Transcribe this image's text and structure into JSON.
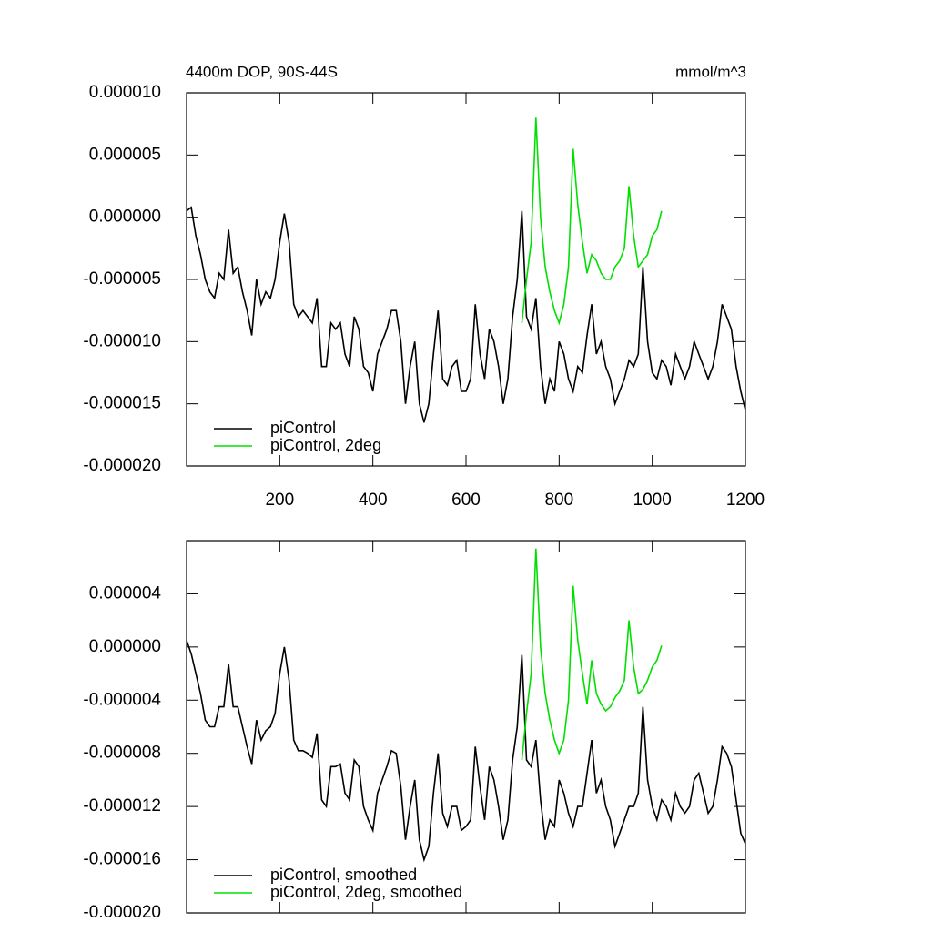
{
  "chart_data": [
    {
      "type": "line",
      "title": "4400m DOP, 90S-44S",
      "units": "mmol/m^3",
      "xlim": [
        0,
        1200
      ],
      "xticks": [
        200,
        400,
        600,
        800,
        1000,
        1200
      ],
      "xtick_labels": true,
      "ylim": [
        -2e-05,
        1e-05
      ],
      "yticks": [
        {
          "value": -2e-05,
          "label": "-0.000020"
        },
        {
          "value": -1.5e-05,
          "label": "-0.000015"
        },
        {
          "value": -1e-05,
          "label": "-0.000010"
        },
        {
          "value": -5e-06,
          "label": "-0.000005"
        },
        {
          "value": 0,
          "label": "0.000000"
        },
        {
          "value": 5e-06,
          "label": "0.000005"
        },
        {
          "value": 1e-05,
          "label": "0.000010"
        }
      ],
      "legend": "lower left",
      "series": [
        {
          "name": "piControl",
          "color": "#000000",
          "x": [
            0,
            10,
            20,
            30,
            40,
            50,
            60,
            70,
            80,
            90,
            100,
            110,
            120,
            130,
            140,
            150,
            160,
            170,
            180,
            190,
            200,
            210,
            220,
            230,
            240,
            250,
            260,
            270,
            280,
            290,
            300,
            310,
            320,
            330,
            340,
            350,
            360,
            370,
            380,
            390,
            400,
            410,
            420,
            430,
            440,
            450,
            460,
            470,
            480,
            490,
            500,
            510,
            520,
            530,
            540,
            550,
            560,
            570,
            580,
            590,
            600,
            610,
            620,
            630,
            640,
            650,
            660,
            670,
            680,
            690,
            700,
            710,
            720,
            730,
            740,
            750,
            760,
            770,
            780,
            790,
            800,
            810,
            820,
            830,
            840,
            850,
            860,
            870,
            880,
            890,
            900,
            910,
            920,
            930,
            940,
            950,
            960,
            970,
            980,
            990,
            1000,
            1010,
            1020,
            1030,
            1040,
            1050,
            1060,
            1070,
            1080,
            1090,
            1100,
            1110,
            1120,
            1130,
            1140,
            1150,
            1160,
            1170,
            1180,
            1190,
            1200
          ],
          "values": [
            5e-07,
            8e-07,
            -1.5e-06,
            -3e-06,
            -5e-06,
            -6e-06,
            -6.5e-06,
            -4.5e-06,
            -5e-06,
            -1e-06,
            -4.5e-06,
            -4e-06,
            -6e-06,
            -7.5e-06,
            -9.5e-06,
            -5e-06,
            -7e-06,
            -6e-06,
            -6.5e-06,
            -5e-06,
            -2e-06,
            3e-07,
            -2e-06,
            -7e-06,
            -8e-06,
            -7.5e-06,
            -8e-06,
            -8.5e-06,
            -6.5e-06,
            -1.2e-05,
            -1.2e-05,
            -8.5e-06,
            -9e-06,
            -8.5e-06,
            -1.1e-05,
            -1.2e-05,
            -8e-06,
            -9e-06,
            -1.2e-05,
            -1.25e-05,
            -1.4e-05,
            -1.1e-05,
            -1e-05,
            -9e-06,
            -7.5e-06,
            -7.5e-06,
            -1e-05,
            -1.5e-05,
            -1.2e-05,
            -1e-05,
            -1.5e-05,
            -1.65e-05,
            -1.5e-05,
            -1.1e-05,
            -7.5e-06,
            -1.3e-05,
            -1.35e-05,
            -1.2e-05,
            -1.15e-05,
            -1.4e-05,
            -1.4e-05,
            -1.3e-05,
            -7e-06,
            -1.1e-05,
            -1.3e-05,
            -9e-06,
            -1e-05,
            -1.2e-05,
            -1.5e-05,
            -1.3e-05,
            -8e-06,
            -5e-06,
            5e-07,
            -8e-06,
            -9e-06,
            -6.5e-06,
            -1.2e-05,
            -1.5e-05,
            -1.3e-05,
            -1.4e-05,
            -1e-05,
            -1.1e-05,
            -1.3e-05,
            -1.4e-05,
            -1.2e-05,
            -1.25e-05,
            -9.5e-06,
            -7e-06,
            -1.1e-05,
            -1e-05,
            -1.2e-05,
            -1.3e-05,
            -1.5e-05,
            -1.4e-05,
            -1.3e-05,
            -1.15e-05,
            -1.2e-05,
            -1.1e-05,
            -4e-06,
            -1e-05,
            -1.25e-05,
            -1.3e-05,
            -1.15e-05,
            -1.2e-05,
            -1.35e-05,
            -1.1e-05,
            -1.2e-05,
            -1.3e-05,
            -1.2e-05,
            -1e-05,
            -1.1e-05,
            -1.2e-05,
            -1.3e-05,
            -1.2e-05,
            -1e-05,
            -7e-06,
            -8e-06,
            -9e-06,
            -1.2e-05,
            -1.4e-05,
            -1.55e-05
          ]
        },
        {
          "name": "piControl, 2deg",
          "color": "#00e000",
          "x": [
            720,
            730,
            740,
            750,
            760,
            770,
            780,
            790,
            800,
            810,
            820,
            830,
            840,
            850,
            860,
            870,
            880,
            890,
            900,
            910,
            920,
            930,
            940,
            950,
            960,
            970,
            980,
            990,
            1000,
            1010,
            1020
          ],
          "values": [
            -8.5e-06,
            -5e-06,
            -2e-06,
            8e-06,
            0,
            -4e-06,
            -6e-06,
            -7.5e-06,
            -8.5e-06,
            -7e-06,
            -4e-06,
            5.5e-06,
            1e-06,
            -2e-06,
            -4.5e-06,
            -3e-06,
            -3.5e-06,
            -4.5e-06,
            -5e-06,
            -5e-06,
            -4e-06,
            -3.5e-06,
            -2.5e-06,
            2.5e-06,
            -1.5e-06,
            -4e-06,
            -3.5e-06,
            -3e-06,
            -1.5e-06,
            -1e-06,
            5e-07
          ]
        }
      ]
    },
    {
      "type": "line",
      "xlim": [
        0,
        1200
      ],
      "xticks": [
        200,
        400,
        600,
        800,
        1000,
        1200
      ],
      "xtick_labels": false,
      "ylim": [
        -2e-05,
        8e-06
      ],
      "yticks": [
        {
          "value": -2e-05,
          "label": "-0.000020"
        },
        {
          "value": -1.6e-05,
          "label": "-0.000016"
        },
        {
          "value": -1.2e-05,
          "label": "-0.000012"
        },
        {
          "value": -8e-06,
          "label": "-0.000008"
        },
        {
          "value": -4e-06,
          "label": "-0.000004"
        },
        {
          "value": 0,
          "label": "0.000000"
        },
        {
          "value": 4e-06,
          "label": "0.000004"
        }
      ],
      "legend": "lower left",
      "series": [
        {
          "name": "piControl, smoothed",
          "color": "#000000",
          "x": [
            0,
            10,
            20,
            30,
            40,
            50,
            60,
            70,
            80,
            90,
            100,
            110,
            120,
            130,
            140,
            150,
            160,
            170,
            180,
            190,
            200,
            210,
            220,
            230,
            240,
            250,
            260,
            270,
            280,
            290,
            300,
            310,
            320,
            330,
            340,
            350,
            360,
            370,
            380,
            390,
            400,
            410,
            420,
            430,
            440,
            450,
            460,
            470,
            480,
            490,
            500,
            510,
            520,
            530,
            540,
            550,
            560,
            570,
            580,
            590,
            600,
            610,
            620,
            630,
            640,
            650,
            660,
            670,
            680,
            690,
            700,
            710,
            720,
            730,
            740,
            750,
            760,
            770,
            780,
            790,
            800,
            810,
            820,
            830,
            840,
            850,
            860,
            870,
            880,
            890,
            900,
            910,
            920,
            930,
            940,
            950,
            960,
            970,
            980,
            990,
            1000,
            1010,
            1020,
            1030,
            1040,
            1050,
            1060,
            1070,
            1080,
            1090,
            1100,
            1110,
            1120,
            1130,
            1140,
            1150,
            1160,
            1170,
            1180,
            1190,
            1200
          ],
          "values": [
            5e-07,
            -5e-07,
            -2e-06,
            -3.5e-06,
            -5.5e-06,
            -6e-06,
            -6e-06,
            -4.5e-06,
            -4.5e-06,
            -1.3e-06,
            -4.5e-06,
            -4.5e-06,
            -6e-06,
            -7.5e-06,
            -8.8e-06,
            -5.5e-06,
            -7e-06,
            -6.3e-06,
            -6e-06,
            -5e-06,
            -2e-06,
            0,
            -2.5e-06,
            -7e-06,
            -7.8e-06,
            -7.8e-06,
            -8e-06,
            -8.3e-06,
            -6.5e-06,
            -1.15e-05,
            -1.2e-05,
            -9e-06,
            -9e-06,
            -8.8e-06,
            -1.1e-05,
            -1.15e-05,
            -8.5e-06,
            -9e-06,
            -1.2e-05,
            -1.3e-05,
            -1.38e-05,
            -1.1e-05,
            -1e-05,
            -9e-06,
            -7.8e-06,
            -8e-06,
            -1.05e-05,
            -1.45e-05,
            -1.2e-05,
            -1e-05,
            -1.45e-05,
            -1.6e-05,
            -1.5e-05,
            -1.1e-05,
            -8e-06,
            -1.25e-05,
            -1.35e-05,
            -1.2e-05,
            -1.2e-05,
            -1.38e-05,
            -1.35e-05,
            -1.3e-05,
            -7.5e-06,
            -1.05e-05,
            -1.3e-05,
            -9e-06,
            -1e-05,
            -1.2e-05,
            -1.45e-05,
            -1.3e-05,
            -8.5e-06,
            -6e-06,
            -6e-07,
            -8.5e-06,
            -9e-06,
            -7e-06,
            -1.15e-05,
            -1.45e-05,
            -1.3e-05,
            -1.35e-05,
            -1e-05,
            -1.1e-05,
            -1.25e-05,
            -1.35e-05,
            -1.2e-05,
            -1.2e-05,
            -9.5e-06,
            -7e-06,
            -1.1e-05,
            -1e-05,
            -1.2e-05,
            -1.3e-05,
            -1.5e-05,
            -1.4e-05,
            -1.3e-05,
            -1.2e-05,
            -1.2e-05,
            -1.1e-05,
            -4.5e-06,
            -1e-05,
            -1.2e-05,
            -1.3e-05,
            -1.15e-05,
            -1.2e-05,
            -1.3e-05,
            -1.1e-05,
            -1.2e-05,
            -1.25e-05,
            -1.2e-05,
            -1e-05,
            -9.5e-06,
            -1.1e-05,
            -1.25e-05,
            -1.2e-05,
            -1e-05,
            -7.5e-06,
            -8e-06,
            -9e-06,
            -1.15e-05,
            -1.4e-05,
            -1.48e-05
          ]
        },
        {
          "name": "piControl, 2deg, smoothed",
          "color": "#00e000",
          "x": [
            720,
            730,
            740,
            750,
            760,
            770,
            780,
            790,
            800,
            810,
            820,
            830,
            840,
            850,
            860,
            870,
            880,
            890,
            900,
            910,
            920,
            930,
            940,
            950,
            960,
            970,
            980,
            990,
            1000,
            1010,
            1020
          ],
          "values": [
            -8.5e-06,
            -5e-06,
            -2e-06,
            7.4e-06,
            0,
            -3.5e-06,
            -5.5e-06,
            -7e-06,
            -8e-06,
            -7e-06,
            -4e-06,
            4.6e-06,
            5e-07,
            -2e-06,
            -4.3e-06,
            -1e-06,
            -3.5e-06,
            -4.3e-06,
            -4.8e-06,
            -4.5e-06,
            -3.8e-06,
            -3.3e-06,
            -2.5e-06,
            2e-06,
            -1.5e-06,
            -3.5e-06,
            -3.2e-06,
            -2.5e-06,
            -1.5e-06,
            -1e-06,
            1e-07
          ]
        }
      ]
    }
  ]
}
